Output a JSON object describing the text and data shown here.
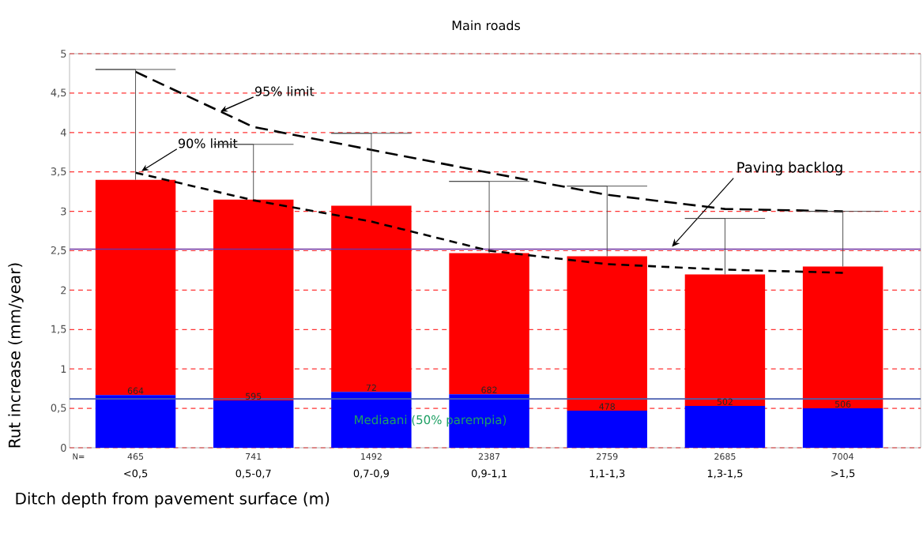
{
  "chart_data": {
    "type": "bar",
    "title": "Main roads",
    "xlabel": "Ditch depth from pavement surface (m)",
    "ylabel": "Rut increase (mm/year)",
    "categories": [
      "<0,5",
      "0,5-0,7",
      "0,7-0,9",
      "0,9-1,1",
      "1,1-1,3",
      "1,3-1,5",
      ">1,5"
    ],
    "stacked": true,
    "series": [
      {
        "color": "#0000ff",
        "values": [
          0.67,
          0.6,
          0.71,
          0.68,
          0.47,
          0.53,
          0.5
        ]
      },
      {
        "color": "#ff0000",
        "values": [
          2.73,
          2.55,
          2.36,
          1.79,
          1.96,
          1.67,
          1.8
        ],
        "errors": [
          [
            3.4,
            4.8
          ],
          [
            3.15,
            3.85
          ],
          [
            3.07,
            3.99
          ],
          [
            2.47,
            3.38
          ],
          [
            2.43,
            3.32
          ],
          [
            2.2,
            2.91
          ],
          [
            2.3,
            3.0
          ]
        ]
      },
      {
        "type": "line",
        "name": "95% limit",
        "color": "#000000",
        "line_style": "dashed",
        "values": [
          4.77,
          4.07,
          3.78,
          3.49,
          3.21,
          3.03,
          3.0
        ]
      },
      {
        "type": "line",
        "name": "90% limit",
        "color": "#000000",
        "line_style": "dashed",
        "values": [
          3.49,
          3.14,
          2.87,
          2.5,
          2.33,
          2.26,
          2.22
        ]
      }
    ],
    "ylim": [
      0,
      5
    ],
    "yticks": [
      0,
      {
        "value": 0.5,
        "label": "0,5"
      },
      1,
      {
        "value": 1.5,
        "label": "1,5"
      },
      2,
      {
        "value": 2.5,
        "label": "2,5"
      },
      3,
      {
        "value": 3.5,
        "label": "3,5"
      },
      4,
      {
        "value": 4.5,
        "label": "4,5"
      },
      5
    ],
    "grid": "y",
    "ref_lines": [
      {
        "axis": "y",
        "value": 2.52,
        "label": "Paving backlog",
        "color": "#7030a0"
      },
      {
        "axis": "y",
        "value": 0.62,
        "label": "Mediaani (50% parempia)",
        "color": "#4a5fb0"
      }
    ],
    "annotations": [
      "N=",
      "465",
      "741",
      "1492",
      "2387",
      "2759",
      "2685",
      "7004",
      "664",
      "595",
      "72",
      "682",
      "478",
      "502",
      "506"
    ]
  }
}
